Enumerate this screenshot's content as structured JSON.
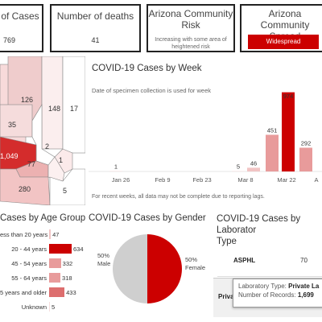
{
  "cards": [
    {
      "title": "r of Cases",
      "value": "769"
    },
    {
      "title": "Number of deaths",
      "value": "41"
    },
    {
      "title": "Arizona Community Risk",
      "subtitle": "Increasing with some area of heightened risk"
    },
    {
      "title": "Arizona Community Spread",
      "badge": "Widespread"
    }
  ],
  "map": {
    "counties": [
      "126",
      "148",
      "17",
      "35",
      "2",
      "1,049",
      "77",
      "1",
      "280",
      "5"
    ]
  },
  "weekly": {
    "title": "COVID-19 Cases by Week",
    "subtitle": "Date of specimen collection is used for week",
    "footnote": "For recent weeks, all data may not be complete due to reporting lags."
  },
  "chart_data": {
    "type": "bar",
    "x_tick_labels": [
      "Jan 26",
      "Feb 9",
      "Feb 23",
      "Mar 8",
      "Mar 22",
      "A"
    ],
    "bars": [
      {
        "label": "1",
        "value": 1,
        "position": "Jan 26"
      },
      {
        "label": "5",
        "value": 5,
        "position": "Mar 8"
      },
      {
        "label": "46",
        "value": 46,
        "position": "between Mar 8 and Mar 22"
      },
      {
        "label": "451",
        "value": 451,
        "position": "before Mar 22"
      },
      {
        "label": "974",
        "value": 974,
        "position": "Mar 22"
      },
      {
        "label": "292",
        "value": 292,
        "position": "after Mar 22"
      }
    ],
    "ylim": [
      0,
      1000
    ]
  },
  "age": {
    "title": "Cases by Age Group",
    "groups": [
      {
        "label": "ess than 20 years",
        "value": "47",
        "n": 47,
        "color": "#f1c6c6"
      },
      {
        "label": "20 - 44 years",
        "value": "634",
        "n": 634,
        "color": "#cc0000"
      },
      {
        "label": "45 - 54 years",
        "value": "332",
        "n": 332,
        "color": "#e89b9b"
      },
      {
        "label": "55 - 64 years",
        "value": "318",
        "n": 318,
        "color": "#e89b9b"
      },
      {
        "label": "5 years and older",
        "value": "433",
        "n": 433,
        "color": "#dd6e6e"
      },
      {
        "label": "Unknown",
        "value": "5",
        "n": 5,
        "color": "#f6dede"
      }
    ]
  },
  "gender": {
    "title": "COVID-19 Cases by Gender",
    "male_label": "50%\nMale",
    "female_label": "50%\nFemale",
    "male_pct": "50%",
    "male": "Male",
    "female_pct": "50%",
    "female": "Female",
    "male_share": 0.5,
    "female_share": 0.5,
    "colors": {
      "male": "#cfcfcf",
      "female": "#cc0000"
    }
  },
  "lab": {
    "title_line1": "COVID-19 Cases by Laborator",
    "title_line2": "Type",
    "rows": [
      {
        "name": "ASPHL",
        "value": "70"
      },
      {
        "name": "Privat",
        "value": ""
      }
    ],
    "tooltip": {
      "type_label": "Laboratory Type:",
      "type_value": "Private La",
      "records_label": "Number of Records:",
      "records_value": "1,699"
    }
  }
}
